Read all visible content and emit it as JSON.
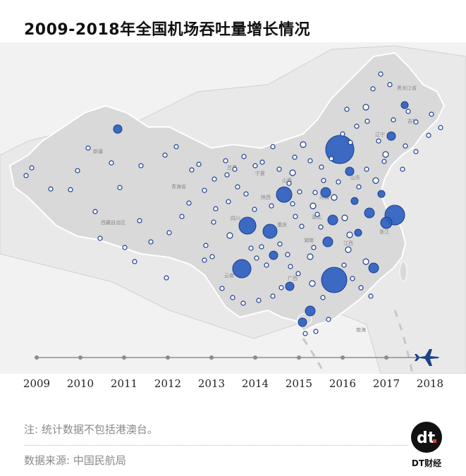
{
  "title": "2009-2018年全国机场吞吐量增长情况",
  "colors": {
    "bubble": "#2f5fbf",
    "bubble_stroke": "#1a3f8f",
    "land": "#e6e6e6",
    "china": "#d6d6d6",
    "timeline": "#8c8c8c",
    "plane": "#1e3f8a"
  },
  "map_labels": [
    "黑龙江省",
    "吉林",
    "辽宁",
    "新疆",
    "甘肃",
    "宁夏",
    "山西",
    "山东",
    "青海省",
    "陕西",
    "河南",
    "四川",
    "湖北",
    "重庆",
    "湖南",
    "江西",
    "浙江",
    "云南",
    "广西",
    "西藏自治区",
    "南海"
  ],
  "timeline": {
    "years": [
      "2009",
      "2010",
      "2011",
      "2012",
      "2013",
      "2014",
      "2015",
      "2016",
      "2017",
      "2018"
    ],
    "current_year": "2018",
    "plane_icon": "airplane-icon"
  },
  "note": "注: 统计数据不包括港澳台。",
  "source": "数据来源: 中国民航局",
  "logo": {
    "mark": "dt",
    "name": "DT财经"
  }
}
